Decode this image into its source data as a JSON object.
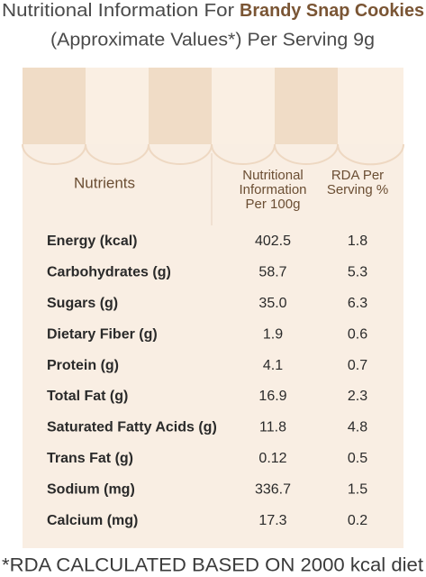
{
  "header": {
    "title": "Nutritional Information For",
    "product": "Brandy Snap Cookies",
    "subtitle": "(Approximate Values*) Per Serving 9g"
  },
  "table": {
    "columns": [
      "Nutrients",
      "Nutritional Information Per 100g",
      "RDA Per Serving %"
    ],
    "column_lines": [
      [
        "Nutritional",
        "Information",
        "Per 100g"
      ],
      [
        "RDA Per",
        "Serving %"
      ]
    ],
    "rows": [
      [
        "Energy (kcal)",
        "402.5",
        "1.8"
      ],
      [
        "Carbohydrates (g)",
        "58.7",
        "5.3"
      ],
      [
        "Sugars (g)",
        "35.0",
        "6.3"
      ],
      [
        "Dietary Fiber (g)",
        "1.9",
        "0.6"
      ],
      [
        "Protein (g)",
        "4.1",
        "0.7"
      ],
      [
        "Total Fat (g)",
        "16.9",
        "2.3"
      ],
      [
        "Saturated Fatty Acids (g)",
        "11.8",
        "4.8"
      ],
      [
        "Trans Fat (g)",
        "0.12",
        "0.5"
      ],
      [
        "Sodium (mg)",
        "336.7",
        "1.5"
      ],
      [
        "Calcium (mg)",
        "17.3",
        "0.2"
      ]
    ]
  },
  "footnote": "*RDA CALCULATED BASED ON 2000 kcal diet"
}
